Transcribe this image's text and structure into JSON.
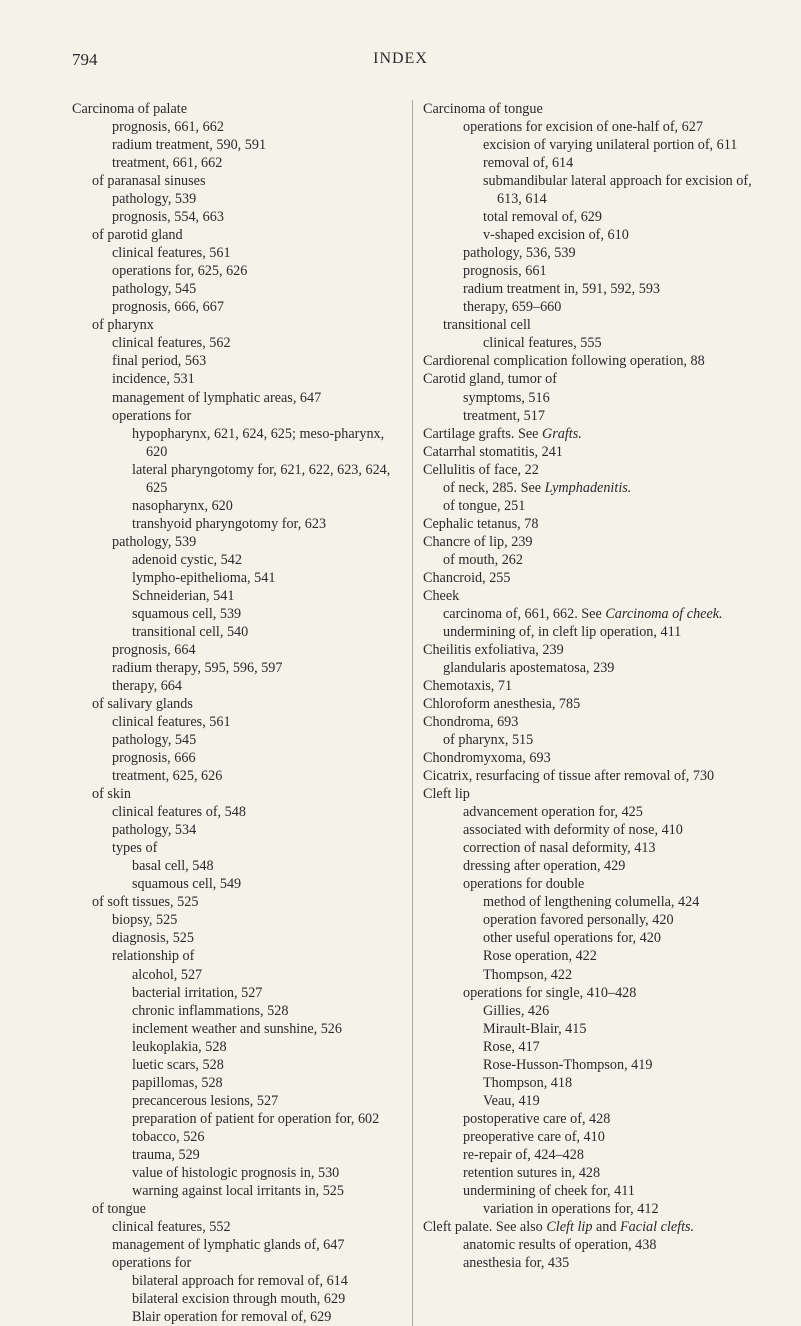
{
  "page_number": "794",
  "page_title": "INDEX",
  "left_column": [
    {
      "lvl": 0,
      "t": "Carcinoma of palate"
    },
    {
      "lvl": 2,
      "t": "prognosis, 661, 662"
    },
    {
      "lvl": 2,
      "t": "radium treatment, 590, 591"
    },
    {
      "lvl": 2,
      "t": "treatment, 661, 662"
    },
    {
      "lvl": 1,
      "t": "of paranasal sinuses"
    },
    {
      "lvl": 2,
      "t": "pathology, 539"
    },
    {
      "lvl": 2,
      "t": "prognosis, 554, 663"
    },
    {
      "lvl": 1,
      "t": "of parotid gland"
    },
    {
      "lvl": 2,
      "t": "clinical features, 561"
    },
    {
      "lvl": 2,
      "t": "operations for, 625, 626"
    },
    {
      "lvl": 2,
      "t": "pathology, 545"
    },
    {
      "lvl": 2,
      "t": "prognosis, 666, 667"
    },
    {
      "lvl": 1,
      "t": "of pharynx"
    },
    {
      "lvl": 2,
      "t": "clinical features, 562"
    },
    {
      "lvl": 2,
      "t": "final period, 563"
    },
    {
      "lvl": 2,
      "t": "incidence, 531"
    },
    {
      "lvl": 2,
      "t": "management of lymphatic areas, 647"
    },
    {
      "lvl": 2,
      "t": "operations for"
    },
    {
      "lvl": 3,
      "t": "hypopharynx, 621, 624, 625; meso-pharynx, 620"
    },
    {
      "lvl": 3,
      "t": "lateral pharyngotomy for, 621, 622, 623, 624, 625"
    },
    {
      "lvl": 3,
      "t": "nasopharynx, 620"
    },
    {
      "lvl": 3,
      "t": "transhyoid pharyngotomy for, 623"
    },
    {
      "lvl": 2,
      "t": "pathology, 539"
    },
    {
      "lvl": 3,
      "t": "adenoid cystic, 542"
    },
    {
      "lvl": 3,
      "t": "lympho-epithelioma, 541"
    },
    {
      "lvl": 3,
      "t": "Schneiderian, 541"
    },
    {
      "lvl": 3,
      "t": "squamous cell, 539"
    },
    {
      "lvl": 3,
      "t": "transitional cell, 540"
    },
    {
      "lvl": 2,
      "t": "prognosis, 664"
    },
    {
      "lvl": 2,
      "t": "radium therapy, 595, 596, 597"
    },
    {
      "lvl": 2,
      "t": "therapy, 664"
    },
    {
      "lvl": 1,
      "t": "of salivary glands"
    },
    {
      "lvl": 2,
      "t": "clinical features, 561"
    },
    {
      "lvl": 2,
      "t": "pathology, 545"
    },
    {
      "lvl": 2,
      "t": "prognosis, 666"
    },
    {
      "lvl": 2,
      "t": "treatment, 625, 626"
    },
    {
      "lvl": 1,
      "t": "of skin"
    },
    {
      "lvl": 2,
      "t": "clinical features of, 548"
    },
    {
      "lvl": 2,
      "t": "pathology, 534"
    },
    {
      "lvl": 2,
      "t": "types of"
    },
    {
      "lvl": 3,
      "t": "basal cell, 548"
    },
    {
      "lvl": 3,
      "t": "squamous cell, 549"
    },
    {
      "lvl": 1,
      "t": "of soft tissues, 525"
    },
    {
      "lvl": 2,
      "t": "biopsy, 525"
    },
    {
      "lvl": 2,
      "t": "diagnosis, 525"
    },
    {
      "lvl": 2,
      "t": "relationship of"
    },
    {
      "lvl": 3,
      "t": "alcohol, 527"
    },
    {
      "lvl": 3,
      "t": "bacterial irritation, 527"
    },
    {
      "lvl": 3,
      "t": "chronic inflammations, 528"
    },
    {
      "lvl": 3,
      "t": "inclement weather and sunshine, 526"
    },
    {
      "lvl": 3,
      "t": "leukoplakia, 528"
    },
    {
      "lvl": 3,
      "t": "luetic scars, 528"
    },
    {
      "lvl": 3,
      "t": "papillomas, 528"
    },
    {
      "lvl": 3,
      "t": "precancerous lesions, 527"
    },
    {
      "lvl": 3,
      "t": "preparation of patient for operation for, 602"
    },
    {
      "lvl": 3,
      "t": "tobacco, 526"
    },
    {
      "lvl": 3,
      "t": "trauma, 529"
    },
    {
      "lvl": 3,
      "t": "value of histologic prognosis in, 530"
    },
    {
      "lvl": 3,
      "t": "warning against local irritants in, 525"
    },
    {
      "lvl": 1,
      "t": "of tongue"
    },
    {
      "lvl": 2,
      "t": "clinical features, 552"
    },
    {
      "lvl": 2,
      "t": "management of lymphatic glands of, 647"
    },
    {
      "lvl": 2,
      "t": "operations for"
    },
    {
      "lvl": 3,
      "t": "bilateral approach for removal of, 614"
    },
    {
      "lvl": 3,
      "t": "bilateral excision through mouth, 629"
    },
    {
      "lvl": 3,
      "t": "Blair operation for removal of, 629"
    }
  ],
  "right_column": [
    {
      "lvl": 0,
      "t": "Carcinoma of tongue"
    },
    {
      "lvl": 2,
      "t": "operations for excision of one-half of, 627"
    },
    {
      "lvl": 3,
      "t": "excision of varying unilateral portion of, 611"
    },
    {
      "lvl": 3,
      "t": "removal of, 614"
    },
    {
      "lvl": 3,
      "t": "submandibular lateral approach for excision of, 613, 614"
    },
    {
      "lvl": 3,
      "t": "total removal of, 629"
    },
    {
      "lvl": 3,
      "t": "v-shaped excision of, 610"
    },
    {
      "lvl": 2,
      "t": "pathology, 536, 539"
    },
    {
      "lvl": 2,
      "t": "prognosis, 661"
    },
    {
      "lvl": 2,
      "t": "radium treatment in, 591, 592, 593"
    },
    {
      "lvl": 2,
      "t": "therapy, 659–660"
    },
    {
      "lvl": 1,
      "t": "transitional cell"
    },
    {
      "lvl": 3,
      "t": "clinical features, 555"
    },
    {
      "lvl": 0,
      "t": "Cardiorenal complication following operation, 88"
    },
    {
      "lvl": 0,
      "t": "Carotid gland, tumor of"
    },
    {
      "lvl": 2,
      "t": "symptoms, 516"
    },
    {
      "lvl": 2,
      "t": "treatment, 517"
    },
    {
      "lvl": 0,
      "t": "Cartilage grafts. See ",
      "it": "Grafts."
    },
    {
      "lvl": 0,
      "t": "Catarrhal stomatitis, 241"
    },
    {
      "lvl": 0,
      "t": "Cellulitis of face, 22"
    },
    {
      "lvl": 1,
      "t": "of neck, 285. See ",
      "it": "Lymphadenitis."
    },
    {
      "lvl": 1,
      "t": "of tongue, 251"
    },
    {
      "lvl": 0,
      "t": "Cephalic tetanus, 78"
    },
    {
      "lvl": 0,
      "t": "Chancre of lip, 239"
    },
    {
      "lvl": 1,
      "t": "of mouth, 262"
    },
    {
      "lvl": 0,
      "t": "Chancroid, 255"
    },
    {
      "lvl": 0,
      "t": "Cheek"
    },
    {
      "lvl": 1,
      "t": "carcinoma of, 661, 662. See ",
      "it": "Carcinoma of cheek."
    },
    {
      "lvl": 1,
      "t": "undermining of, in cleft lip operation, 411"
    },
    {
      "lvl": 0,
      "t": "Cheilitis exfoliativa, 239"
    },
    {
      "lvl": 1,
      "t": "glandularis apostematosa, 239"
    },
    {
      "lvl": 0,
      "t": "Chemotaxis, 71"
    },
    {
      "lvl": 0,
      "t": "Chloroform anesthesia, 785"
    },
    {
      "lvl": 0,
      "t": "Chondroma, 693"
    },
    {
      "lvl": 1,
      "t": "of pharynx, 515"
    },
    {
      "lvl": 0,
      "t": "Chondromyxoma, 693"
    },
    {
      "lvl": 0,
      "t": "Cicatrix, resurfacing of tissue after removal of, 730"
    },
    {
      "lvl": 0,
      "t": "Cleft lip"
    },
    {
      "lvl": 2,
      "t": "advancement operation for, 425"
    },
    {
      "lvl": 2,
      "t": "associated with deformity of nose, 410"
    },
    {
      "lvl": 2,
      "t": "correction of nasal deformity, 413"
    },
    {
      "lvl": 2,
      "t": "dressing after operation, 429"
    },
    {
      "lvl": 2,
      "t": "operations for double"
    },
    {
      "lvl": 3,
      "t": "method of lengthening columella, 424"
    },
    {
      "lvl": 3,
      "t": "operation favored personally, 420"
    },
    {
      "lvl": 3,
      "t": "other useful operations for, 420"
    },
    {
      "lvl": 3,
      "t": "Rose operation, 422"
    },
    {
      "lvl": 3,
      "t": "Thompson, 422"
    },
    {
      "lvl": 2,
      "t": "operations for single, 410–428"
    },
    {
      "lvl": 3,
      "t": "Gillies, 426"
    },
    {
      "lvl": 3,
      "t": "Mirault-Blair, 415"
    },
    {
      "lvl": 3,
      "t": "Rose, 417"
    },
    {
      "lvl": 3,
      "t": "Rose-Husson-Thompson, 419"
    },
    {
      "lvl": 3,
      "t": "Thompson, 418"
    },
    {
      "lvl": 3,
      "t": "Veau, 419"
    },
    {
      "lvl": 2,
      "t": "postoperative care of, 428"
    },
    {
      "lvl": 2,
      "t": "preoperative care of, 410"
    },
    {
      "lvl": 2,
      "t": "re-repair of, 424–428"
    },
    {
      "lvl": 2,
      "t": "retention sutures in, 428"
    },
    {
      "lvl": 2,
      "t": "undermining of cheek for, 411"
    },
    {
      "lvl": 3,
      "t": "variation in operations for, 412"
    },
    {
      "lvl": 0,
      "t": "Cleft palate. See also ",
      "it": "Cleft lip",
      "t2": " and ",
      "it2": "Facial clefts."
    },
    {
      "lvl": 2,
      "t": "anatomic results of operation, 438"
    },
    {
      "lvl": 2,
      "t": "anesthesia for, 435"
    }
  ]
}
